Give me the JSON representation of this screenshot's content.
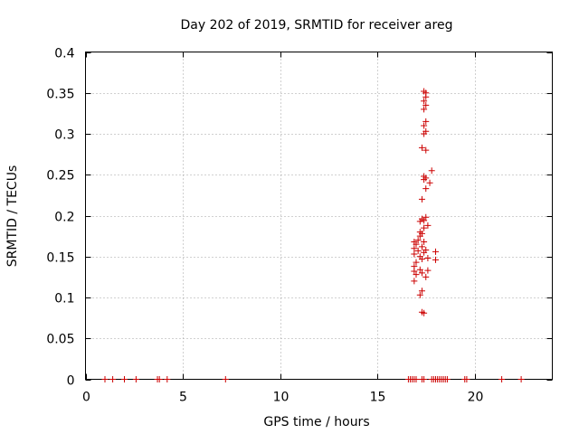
{
  "chart_data": {
    "type": "scatter",
    "title": "Day 202 of 2019, SRMTID for receiver areg",
    "xlabel": "GPS time / hours",
    "ylabel": "SRMTID / TECUs",
    "xlim": [
      0,
      24
    ],
    "ylim": [
      0,
      0.4
    ],
    "x_ticks": [
      0,
      5,
      10,
      15,
      20
    ],
    "x_tick_labels": [
      "0",
      "5",
      "10",
      "15",
      "20"
    ],
    "y_ticks": [
      0,
      0.05,
      0.1,
      0.15,
      0.2,
      0.25,
      0.3,
      0.35,
      0.4
    ],
    "y_tick_labels": [
      "0",
      "0.05",
      "0.1",
      "0.15",
      "0.2",
      "0.25",
      "0.3",
      "0.35",
      "0.4"
    ],
    "grid": true,
    "marker": "plus",
    "color": "#cc0000",
    "series": [
      {
        "points": [
          [
            1.0,
            0
          ],
          [
            1.4,
            0
          ],
          [
            2.0,
            0
          ],
          [
            2.6,
            0
          ],
          [
            3.7,
            0
          ],
          [
            3.8,
            0
          ],
          [
            4.2,
            0
          ],
          [
            7.2,
            0
          ],
          [
            16.6,
            0
          ],
          [
            16.7,
            0
          ],
          [
            16.8,
            0
          ],
          [
            16.9,
            0
          ],
          [
            17.0,
            0
          ],
          [
            17.3,
            0
          ],
          [
            17.4,
            0
          ],
          [
            17.8,
            0
          ],
          [
            17.9,
            0
          ],
          [
            18.0,
            0
          ],
          [
            18.1,
            0
          ],
          [
            18.2,
            0
          ],
          [
            18.3,
            0
          ],
          [
            18.4,
            0
          ],
          [
            18.5,
            0
          ],
          [
            18.6,
            0
          ],
          [
            19.5,
            0
          ],
          [
            19.6,
            0
          ],
          [
            21.4,
            0
          ],
          [
            22.4,
            0
          ],
          [
            17.4,
            0.352
          ],
          [
            17.5,
            0.35
          ],
          [
            17.5,
            0.345
          ],
          [
            17.4,
            0.34
          ],
          [
            17.5,
            0.335
          ],
          [
            17.4,
            0.33
          ],
          [
            17.5,
            0.315
          ],
          [
            17.4,
            0.31
          ],
          [
            17.5,
            0.303
          ],
          [
            17.4,
            0.3
          ],
          [
            17.3,
            0.283
          ],
          [
            17.5,
            0.28
          ],
          [
            17.8,
            0.255
          ],
          [
            17.4,
            0.248
          ],
          [
            17.5,
            0.246
          ],
          [
            17.4,
            0.244
          ],
          [
            17.7,
            0.24
          ],
          [
            17.5,
            0.233
          ],
          [
            17.3,
            0.22
          ],
          [
            17.5,
            0.198
          ],
          [
            17.3,
            0.196
          ],
          [
            17.4,
            0.194
          ],
          [
            17.2,
            0.193
          ],
          [
            17.6,
            0.188
          ],
          [
            17.4,
            0.185
          ],
          [
            17.2,
            0.18
          ],
          [
            17.3,
            0.178
          ],
          [
            17.2,
            0.175
          ],
          [
            17.1,
            0.17
          ],
          [
            17.4,
            0.168
          ],
          [
            16.9,
            0.168
          ],
          [
            17.0,
            0.165
          ],
          [
            17.3,
            0.162
          ],
          [
            16.9,
            0.16
          ],
          [
            17.5,
            0.158
          ],
          [
            17.1,
            0.157
          ],
          [
            18.0,
            0.156
          ],
          [
            17.4,
            0.155
          ],
          [
            16.9,
            0.153
          ],
          [
            17.2,
            0.15
          ],
          [
            17.6,
            0.148
          ],
          [
            17.3,
            0.147
          ],
          [
            18.0,
            0.146
          ],
          [
            17.0,
            0.143
          ],
          [
            16.9,
            0.138
          ],
          [
            17.2,
            0.134
          ],
          [
            17.6,
            0.133
          ],
          [
            16.9,
            0.132
          ],
          [
            17.3,
            0.13
          ],
          [
            17.0,
            0.128
          ],
          [
            17.5,
            0.125
          ],
          [
            16.9,
            0.12
          ],
          [
            17.3,
            0.108
          ],
          [
            17.2,
            0.103
          ],
          [
            17.3,
            0.082
          ],
          [
            17.4,
            0.081
          ]
        ]
      }
    ]
  }
}
